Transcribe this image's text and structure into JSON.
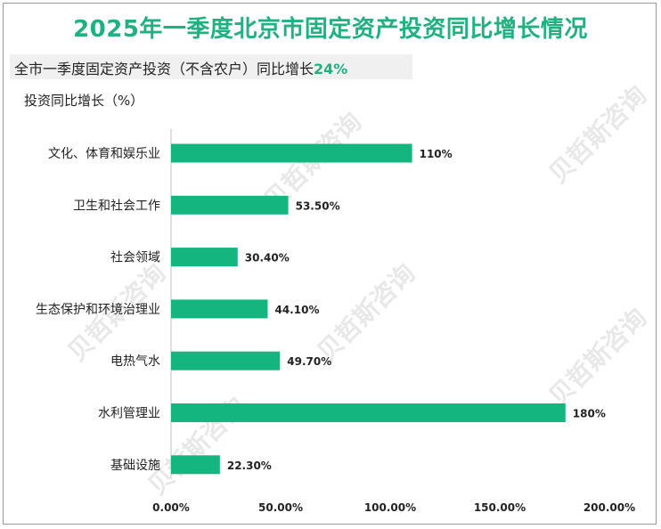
{
  "title": "2025年一季度北京市固定资产投资同比增长情况",
  "subtitle": {
    "prefix": "全市一季度固定资产投资（不含农户）同比增长",
    "value": "24%"
  },
  "watermark": "贝哲斯咨询",
  "colors": {
    "title": "#21b07f",
    "bar": "#14b57e",
    "axis": "#222222"
  },
  "chart_data": {
    "type": "bar",
    "orientation": "horizontal",
    "ylabel": "投资同比增长（%）",
    "categories": [
      "文化、体育和娱乐业",
      "卫生和社会工作",
      "社会领域",
      "生态保护和环境治理业",
      "电热气水",
      "水利管理业",
      "基础设施"
    ],
    "values": [
      110,
      53.5,
      30.4,
      44.1,
      49.7,
      180,
      22.3
    ],
    "data_labels": [
      "110%",
      "53.50%",
      "30.40%",
      "44.10%",
      "49.70%",
      "180%",
      "22.30%"
    ],
    "xlim": [
      0,
      200
    ],
    "xticks": [
      0,
      50,
      100,
      150,
      200
    ],
    "xtick_labels": [
      "0.00%",
      "50.00%",
      "100.00%",
      "150.00%",
      "200.00%"
    ],
    "grid": false,
    "legend": "none"
  }
}
